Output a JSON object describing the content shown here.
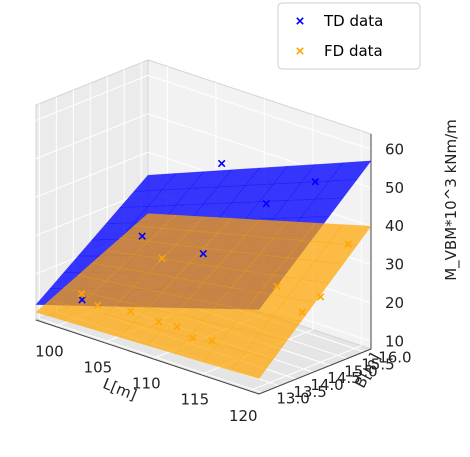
{
  "chart_data": {
    "type": "surface3d",
    "x_axis": {
      "label": "L[m]",
      "ticks": [
        100,
        105,
        110,
        115,
        120
      ],
      "range": [
        98,
        121
      ]
    },
    "y_axis": {
      "label": "B[m]",
      "ticks": [
        "13.0",
        "13.5",
        "14.0",
        "14.5",
        "15.0",
        "15.5",
        "16.0"
      ],
      "range": [
        12.9,
        16.2
      ]
    },
    "z_axis": {
      "label": "M_VBM*10^3 kNm/m",
      "ticks": [
        10,
        20,
        30,
        40,
        50,
        60
      ],
      "range": [
        8,
        64
      ]
    },
    "legend": {
      "placement": "top-right"
    },
    "series": [
      {
        "name": "TD data",
        "color": "#0000ff",
        "surface_corners": {
          "L_min_B_min": 12,
          "L_max_B_min": 30,
          "L_min_B_max": 34,
          "L_max_B_max": 57
        },
        "points": [
          {
            "L": 101,
            "B": 13.4,
            "z": 14
          },
          {
            "L": 103,
            "B": 14.6,
            "z": 28
          },
          {
            "L": 107,
            "B": 15.8,
            "z": 46
          },
          {
            "L": 110,
            "B": 14.4,
            "z": 30
          },
          {
            "L": 113,
            "B": 15.4,
            "z": 42
          },
          {
            "L": 117,
            "B": 15.7,
            "z": 50
          }
        ]
      },
      {
        "name": "FD data",
        "color": "#ffa500",
        "surface_corners": {
          "L_min_B_min": 10,
          "L_max_B_min": 12,
          "L_min_B_max": 24,
          "L_max_B_max": 40
        },
        "points": [
          {
            "L": 98.5,
            "B": 14.1,
            "z": 11
          },
          {
            "L": 100.5,
            "B": 14.0,
            "z": 10
          },
          {
            "L": 103.2,
            "B": 14.2,
            "z": 10
          },
          {
            "L": 106.8,
            "B": 14.0,
            "z": 11
          },
          {
            "L": 108,
            "B": 14.2,
            "z": 10
          },
          {
            "L": 111,
            "B": 13.8,
            "z": 11
          },
          {
            "L": 113,
            "B": 13.8,
            "z": 12
          },
          {
            "L": 115.5,
            "B": 15.0,
            "z": 24
          },
          {
            "L": 119.5,
            "B": 14.6,
            "z": 22
          },
          {
            "L": 120,
            "B": 15.0,
            "z": 25
          },
          {
            "L": 119,
            "B": 16.1,
            "z": 34
          },
          {
            "L": 104,
            "B": 14.9,
            "z": 22
          }
        ]
      }
    ]
  }
}
